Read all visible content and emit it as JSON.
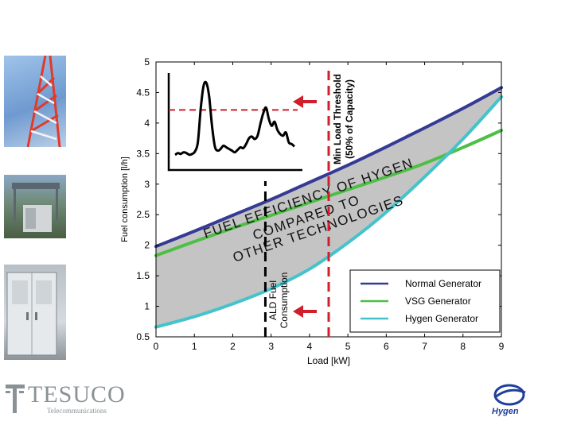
{
  "photos": [
    {
      "name": "telecom-tower-photo"
    },
    {
      "name": "equipment-shelter-photo"
    },
    {
      "name": "generator-cabinet-photo"
    }
  ],
  "logos": {
    "tesuco": {
      "text": "TESUCO",
      "subtext": "Telecommunications",
      "color": "#8a9296"
    },
    "hygen": {
      "text": "Hygen",
      "color": "#1f3f9a"
    }
  },
  "chart_data": {
    "type": "line",
    "xlabel": "Load [kW]",
    "ylabel": "Fuel consumption [l/h]",
    "xlim": [
      0,
      9
    ],
    "ylim": [
      0.5,
      5
    ],
    "xticks": [
      0,
      1,
      2,
      3,
      4,
      5,
      6,
      7,
      8,
      9
    ],
    "yticks": [
      0.5,
      1,
      1.5,
      2,
      2.5,
      3,
      3.5,
      4,
      4.5,
      5
    ],
    "grid": false,
    "legend_position": "bottom-right",
    "series": [
      {
        "name": "Normal Generator",
        "color": "#353a94",
        "x": [
          0,
          1,
          2,
          3,
          4,
          5,
          6,
          7,
          8,
          9
        ],
        "y": [
          1.98,
          2.23,
          2.49,
          2.75,
          3.03,
          3.31,
          3.61,
          3.92,
          4.24,
          4.58
        ]
      },
      {
        "name": "VSG Generator",
        "color": "#4dbf45",
        "x": [
          0,
          1,
          2,
          3,
          4,
          5,
          6,
          7,
          8,
          9
        ],
        "y": [
          1.83,
          2.06,
          2.28,
          2.49,
          2.7,
          2.91,
          3.12,
          3.34,
          3.6,
          3.88
        ]
      },
      {
        "name": "Hygen Generator",
        "color": "#45c3cc",
        "x": [
          0,
          1,
          2,
          3,
          4,
          5,
          6,
          7,
          8,
          9
        ],
        "y": [
          0.66,
          0.83,
          1.04,
          1.29,
          1.61,
          2.04,
          2.54,
          3.12,
          3.74,
          4.43
        ]
      }
    ],
    "annotations": {
      "threshold_line_x": 4.5,
      "threshold_label_1": "Min Load Threshold",
      "threshold_label_2": "(50% of Capacity)",
      "ald_line_x": 2.85,
      "ald_label_1": "ALD Fuel",
      "ald_label_2": "Consumption",
      "diagonal_text": [
        "FUEL EFFICIENCY OF HYGEN",
        "COMPARED TO",
        "OTHER TECHNOLOGIES"
      ]
    },
    "inset": {
      "type": "line",
      "threshold_level": 0.62,
      "values": [
        0.05,
        0.07,
        0.06,
        0.08,
        0.07,
        0.05,
        0.06,
        0.09,
        0.2,
        0.6,
        0.88,
        0.92,
        0.75,
        0.4,
        0.15,
        0.1,
        0.12,
        0.16,
        0.14,
        0.12,
        0.1,
        0.08,
        0.11,
        0.14,
        0.13,
        0.18,
        0.25,
        0.27,
        0.24,
        0.28,
        0.42,
        0.55,
        0.62,
        0.48,
        0.4,
        0.45,
        0.35,
        0.3,
        0.28,
        0.32,
        0.2,
        0.18,
        0.15
      ]
    }
  }
}
